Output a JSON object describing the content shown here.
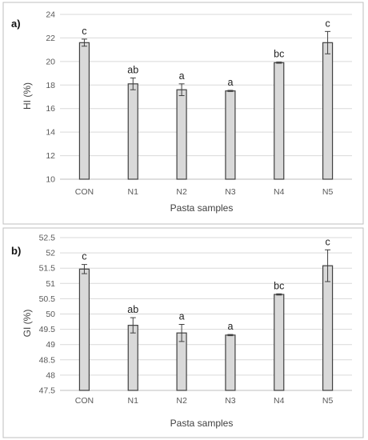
{
  "chart_data": [
    {
      "type": "bar",
      "panel_label": "a)",
      "categories": [
        "CON",
        "N1",
        "N2",
        "N3",
        "N4",
        "N5"
      ],
      "values": [
        21.6,
        18.1,
        17.6,
        17.5,
        19.9,
        21.6
      ],
      "errors": [
        0.3,
        0.5,
        0.5,
        0.05,
        0.05,
        0.95
      ],
      "significance": [
        "c",
        "ab",
        "a",
        "a",
        "bc",
        "c"
      ],
      "xlabel": "Pasta samples",
      "ylabel": "HI (%)",
      "ylim": [
        10,
        24
      ],
      "yticks": [
        "10",
        "12",
        "14",
        "16",
        "18",
        "20",
        "22",
        "24"
      ],
      "grid": true,
      "bar_color": "#d9d9d9",
      "bar_edge_color": "#404040"
    },
    {
      "type": "bar",
      "panel_label": "b)",
      "categories": [
        "CON",
        "N1",
        "N2",
        "N3",
        "N4",
        "N5"
      ],
      "values": [
        51.47,
        49.63,
        49.38,
        49.31,
        50.64,
        51.58
      ],
      "errors": [
        0.15,
        0.25,
        0.28,
        0.02,
        0.02,
        0.52
      ],
      "significance": [
        "c",
        "ab",
        "a",
        "a",
        "bc",
        "c"
      ],
      "xlabel": "Pasta samples",
      "ylabel": "GI (%)",
      "ylim": [
        47.5,
        52.5
      ],
      "yticks": [
        "47.5",
        "48",
        "48.5",
        "49",
        "49.5",
        "50",
        "50.5",
        "51",
        "51.5",
        "52",
        "52.5"
      ],
      "grid": true,
      "bar_color": "#d9d9d9",
      "bar_edge_color": "#404040"
    }
  ]
}
